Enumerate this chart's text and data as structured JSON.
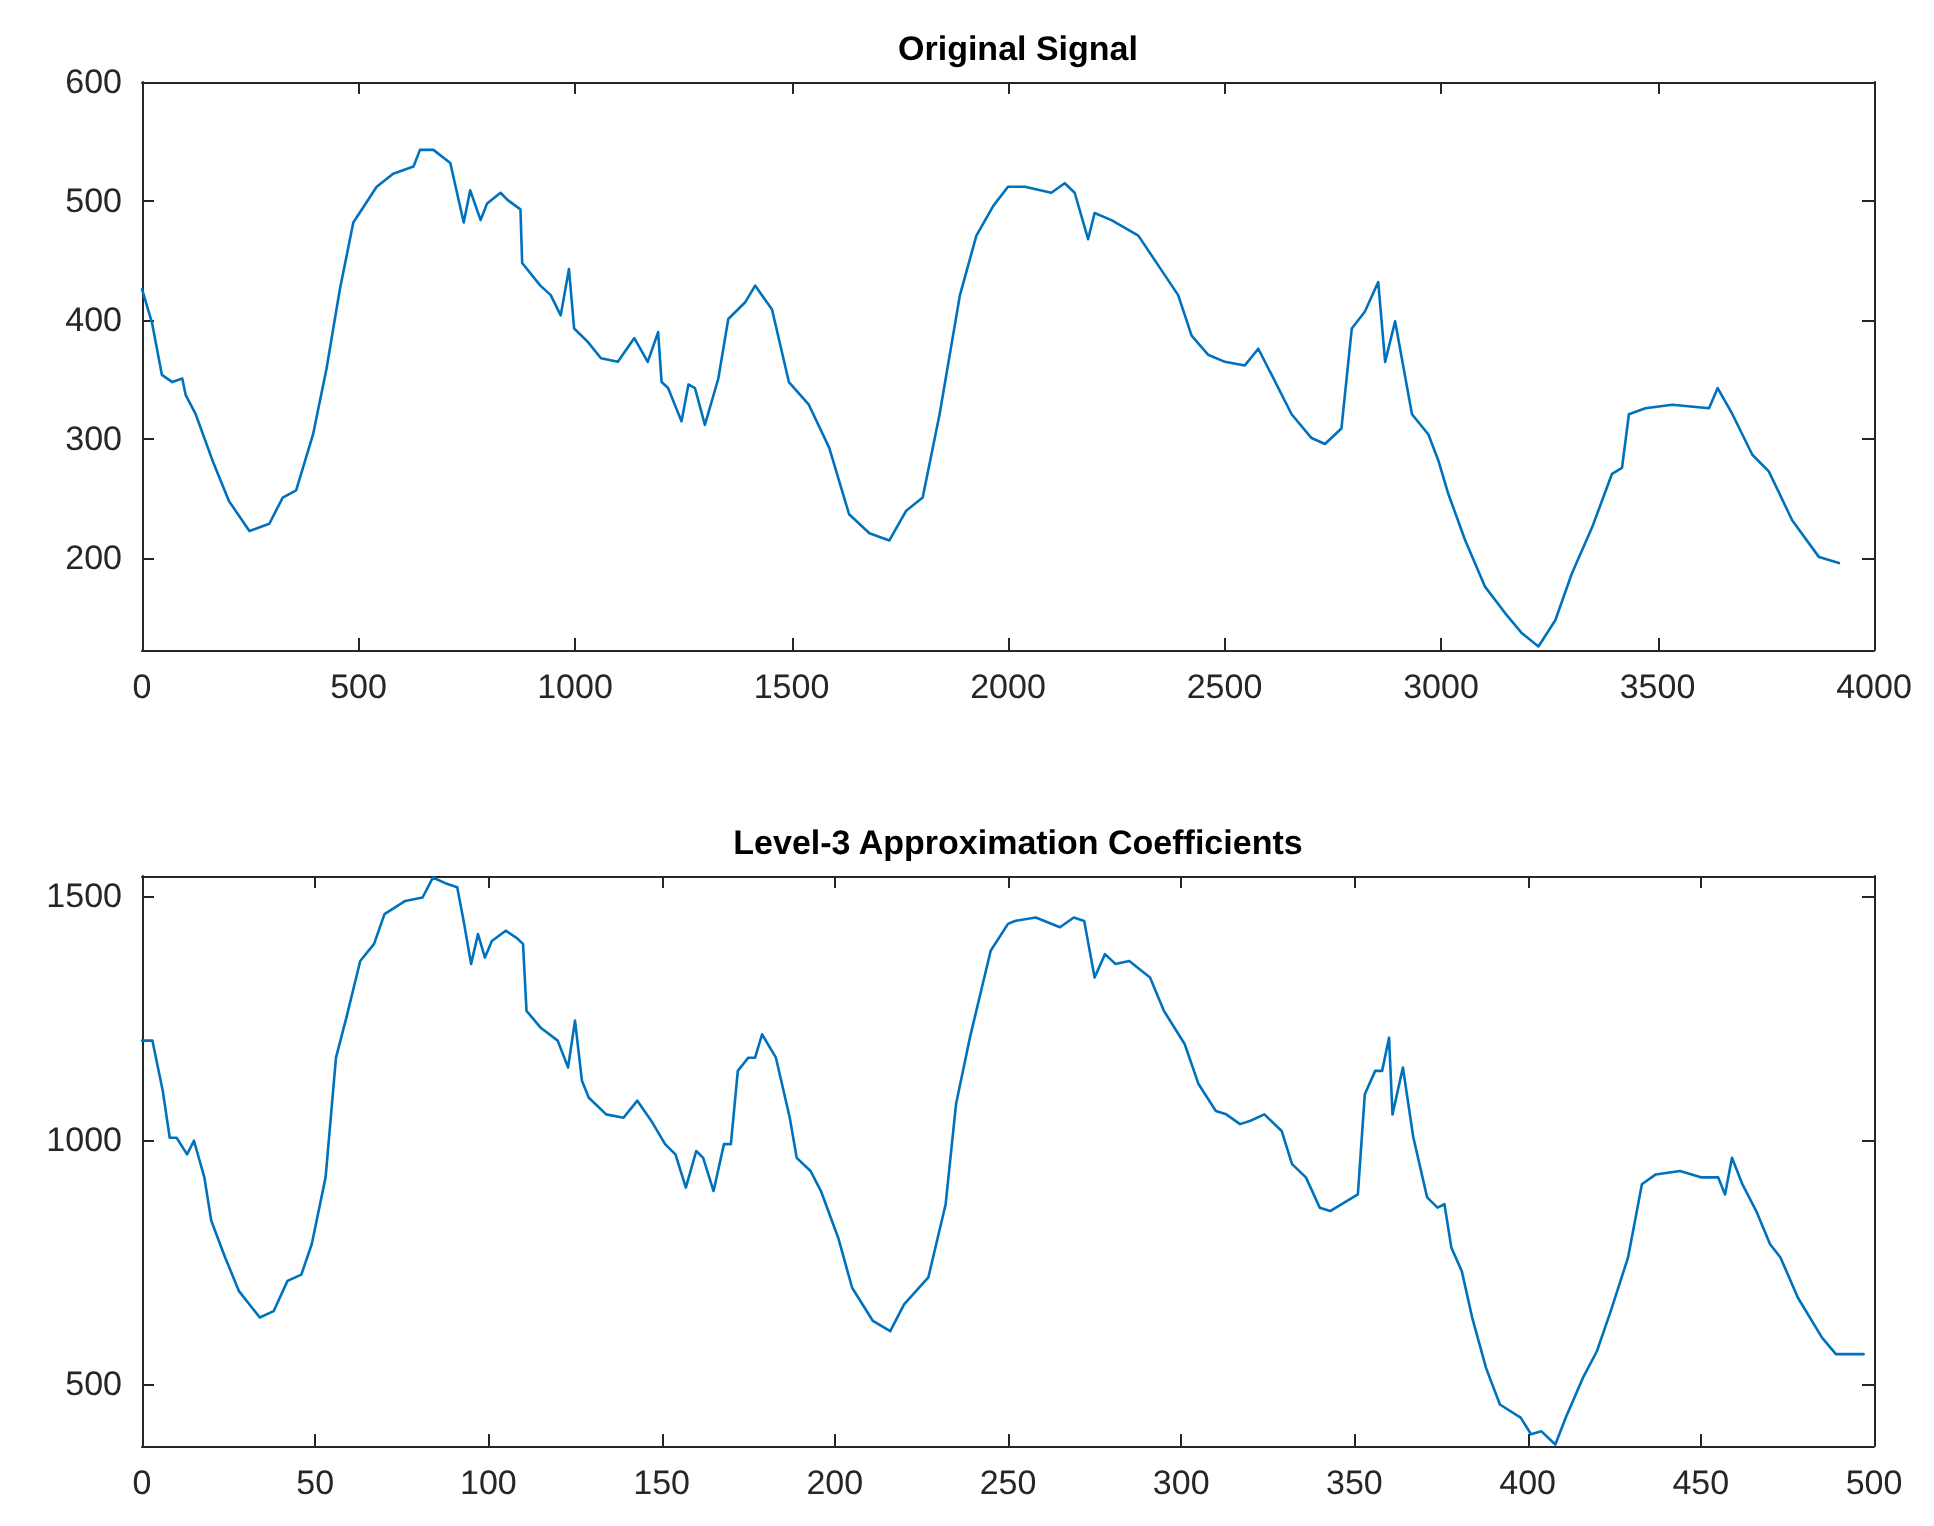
{
  "chart_data": [
    {
      "type": "line",
      "title": "Original Signal",
      "xlim": [
        0,
        4000
      ],
      "xticks": [
        0,
        500,
        1000,
        1500,
        2000,
        2500,
        3000,
        3500,
        4000
      ],
      "ylim": [
        123,
        600
      ],
      "yticks": [
        200,
        300,
        400,
        500,
        600
      ],
      "grid": false,
      "series": [
        {
          "color": "#0072bd",
          "x": [
            0,
            23,
            46,
            70,
            93,
            101,
            124,
            163,
            201,
            248,
            294,
            325,
            356,
            395,
            426,
            457,
            488,
            542,
            580,
            627,
            642,
            673,
            712,
            743,
            758,
            782,
            797,
            828,
            844,
            874,
            878,
            920,
            944,
            967,
            986,
            998,
            1029,
            1060,
            1099,
            1137,
            1168,
            1192,
            1200,
            1215,
            1246,
            1262,
            1277,
            1300,
            1331,
            1354,
            1393,
            1416,
            1455,
            1494,
            1540,
            1587,
            1633,
            1680,
            1726,
            1765,
            1803,
            1842,
            1889,
            1927,
            1966,
            2000,
            2039,
            2100,
            2131,
            2154,
            2185,
            2200,
            2239,
            2301,
            2347,
            2393,
            2424,
            2462,
            2501,
            2547,
            2578,
            2609,
            2655,
            2701,
            2732,
            2770,
            2794,
            2824,
            2855,
            2871,
            2894,
            2933,
            2971,
            2994,
            3017,
            3056,
            3102,
            3148,
            3187,
            3225,
            3264,
            3302,
            3349,
            3395,
            3418,
            3434,
            3472,
            3534,
            3619,
            3639,
            3673,
            3719,
            3757,
            3811,
            3873,
            3919
          ],
          "values": [
            426,
            398,
            354,
            348,
            351,
            337,
            321,
            282,
            248,
            223,
            229,
            251,
            257,
            304,
            359,
            426,
            482,
            512,
            523,
            529,
            543,
            543,
            532,
            482,
            509,
            484,
            498,
            507,
            501,
            493,
            448,
            429,
            421,
            404,
            443,
            393,
            382,
            368,
            365,
            385,
            365,
            390,
            348,
            343,
            315,
            346,
            343,
            312,
            351,
            401,
            415,
            429,
            409,
            348,
            329,
            293,
            237,
            221,
            215,
            240,
            251,
            321,
            421,
            471,
            496,
            512,
            512,
            507,
            515,
            507,
            468,
            490,
            484,
            471,
            446,
            421,
            387,
            371,
            365,
            362,
            376,
            354,
            321,
            301,
            296,
            309,
            393,
            407,
            432,
            365,
            399,
            321,
            304,
            282,
            254,
            215,
            176,
            154,
            137,
            126,
            148,
            187,
            226,
            271,
            276,
            321,
            326,
            329,
            326,
            343,
            321,
            287,
            273,
            232,
            201,
            196
          ]
        }
      ]
    },
    {
      "type": "line",
      "title": "Level-3 Approximation Coefficients",
      "xlim": [
        0,
        500
      ],
      "xticks": [
        0,
        50,
        100,
        150,
        200,
        250,
        300,
        350,
        400,
        450,
        500
      ],
      "ylim": [
        374,
        1541
      ],
      "yticks": [
        500,
        1000,
        1500
      ],
      "grid": false,
      "series": [
        {
          "color": "#0072bd",
          "x": [
            0,
            3,
            6,
            8,
            10,
            13,
            15,
            18,
            20,
            24,
            28,
            34,
            38,
            42,
            46,
            49,
            53,
            56,
            59,
            63,
            67,
            70,
            76,
            81,
            84,
            88,
            91,
            93,
            95,
            97,
            99,
            101,
            105,
            108,
            110,
            111,
            115,
            120,
            123,
            125,
            127,
            129,
            134,
            139,
            143,
            147,
            151,
            154,
            157,
            160,
            162,
            165,
            168,
            170,
            172,
            175,
            177,
            179,
            183,
            187,
            189,
            193,
            196,
            201,
            205,
            211,
            216,
            220,
            227,
            232,
            235,
            239,
            245,
            250,
            252,
            258,
            265,
            269,
            272,
            275,
            278,
            281,
            285,
            291,
            295,
            301,
            305,
            310,
            313,
            317,
            320,
            324,
            329,
            332,
            336,
            340,
            343,
            351,
            353,
            356,
            358,
            360,
            361,
            364,
            367,
            371,
            374,
            376,
            378,
            381,
            384,
            388,
            392,
            398,
            401,
            404,
            408,
            411,
            416,
            420,
            424,
            429,
            433,
            437,
            444,
            450,
            455,
            457,
            459,
            462,
            466,
            470,
            473,
            478,
            485,
            489,
            497
          ],
          "values": [
            1204,
            1204,
            1101,
            1005,
            1005,
            971,
            999,
            924,
            835,
            760,
            691,
            637,
            650,
            712,
            725,
            787,
            924,
            1169,
            1251,
            1367,
            1402,
            1463,
            1490,
            1497,
            1538,
            1525,
            1518,
            1443,
            1361,
            1422,
            1374,
            1408,
            1429,
            1415,
            1402,
            1265,
            1231,
            1204,
            1149,
            1245,
            1122,
            1087,
            1053,
            1046,
            1081,
            1040,
            992,
            971,
            903,
            978,
            964,
            896,
            992,
            992,
            1142,
            1169,
            1169,
            1217,
            1169,
            1046,
            964,
            937,
            896,
            800,
            698,
            630,
            609,
            664,
            719,
            869,
            1074,
            1210,
            1388,
            1443,
            1449,
            1456,
            1436,
            1456,
            1449,
            1333,
            1381,
            1361,
            1367,
            1333,
            1265,
            1197,
            1115,
            1060,
            1053,
            1033,
            1040,
            1053,
            1019,
            951,
            924,
            862,
            855,
            889,
            1094,
            1142,
            1142,
            1210,
            1053,
            1149,
            1006,
            883,
            862,
            869,
            780,
            732,
            637,
            534,
            459,
            432,
            398,
            404,
            377,
            432,
            514,
            568,
            650,
            760,
            910,
            930,
            937,
            924,
            924,
            889,
            964,
            910,
            855,
            787,
            760,
            678,
            596,
            562,
            562
          ]
        }
      ]
    }
  ]
}
